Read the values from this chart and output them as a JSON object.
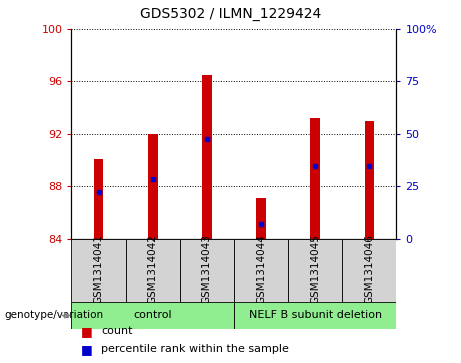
{
  "title": "GDS5302 / ILMN_1229424",
  "samples": [
    "GSM1314041",
    "GSM1314042",
    "GSM1314043",
    "GSM1314044",
    "GSM1314045",
    "GSM1314046"
  ],
  "bar_base": 84,
  "bar_tops": [
    90.1,
    92.0,
    96.5,
    87.1,
    93.2,
    93.0
  ],
  "percentile_left_vals": [
    87.55,
    88.6,
    91.65,
    85.15,
    89.55,
    89.55
  ],
  "bar_color": "#cc0000",
  "marker_color": "#0000cc",
  "ylim_left": [
    84,
    100
  ],
  "ylim_right": [
    0,
    100
  ],
  "yticks_left": [
    84,
    88,
    92,
    96,
    100
  ],
  "yticks_right": [
    0,
    25,
    50,
    75,
    100
  ],
  "ytick_labels_left": [
    "84",
    "88",
    "92",
    "96",
    "100"
  ],
  "ytick_labels_right": [
    "0",
    "25",
    "50",
    "75",
    "100%"
  ],
  "group_label": "genotype/variation",
  "control_label": "control",
  "nelf_label": "NELF B subunit deletion",
  "legend_count": "count",
  "legend_percentile": "percentile rank within the sample",
  "sample_bg": "#d3d3d3",
  "group_green": "#90ee90",
  "bar_width": 0.18
}
